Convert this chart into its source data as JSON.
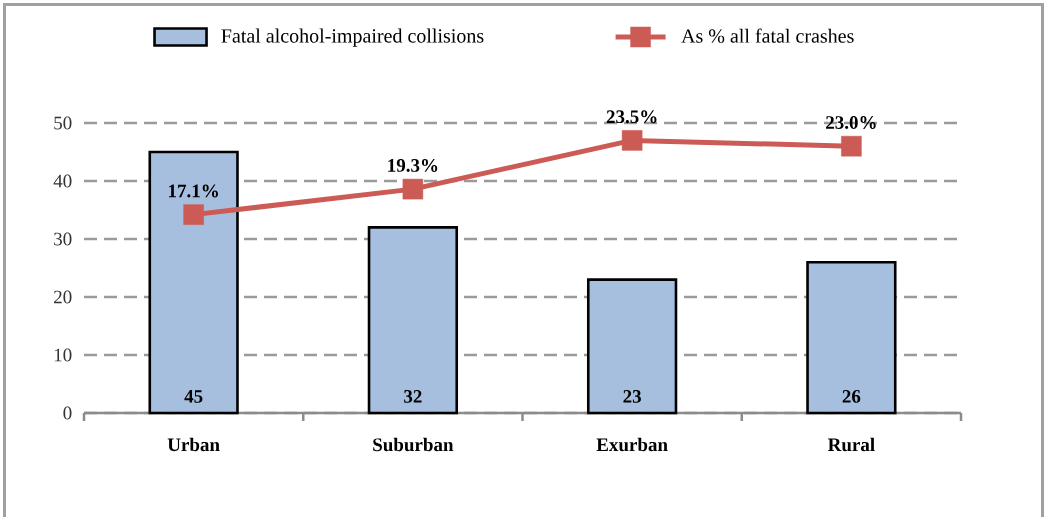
{
  "chart_data": {
    "type": "bar",
    "categories": [
      "Urban",
      "Suburban",
      "Exurban",
      "Rural"
    ],
    "series": [
      {
        "name": "Fatal alcohol-impaired collisions",
        "type": "bar",
        "color": "#a7bfde",
        "values": [
          45,
          32,
          23,
          26
        ],
        "value_labels": [
          "45",
          "32",
          "23",
          "26"
        ]
      },
      {
        "name": "As % all fatal crashes",
        "type": "line",
        "axis": "y2",
        "color": "#cd5b55",
        "marker": "square",
        "values": [
          17.1,
          19.3,
          23.5,
          23.0
        ],
        "value_labels": [
          "17.1%",
          "19.3%",
          "23.5%",
          "23.0%"
        ]
      }
    ],
    "ylim": [
      0,
      50
    ],
    "yticks": [
      0,
      10,
      20,
      30,
      40,
      50
    ],
    "y2lim": [
      0,
      25
    ],
    "grid": "y",
    "legend": "top"
  }
}
